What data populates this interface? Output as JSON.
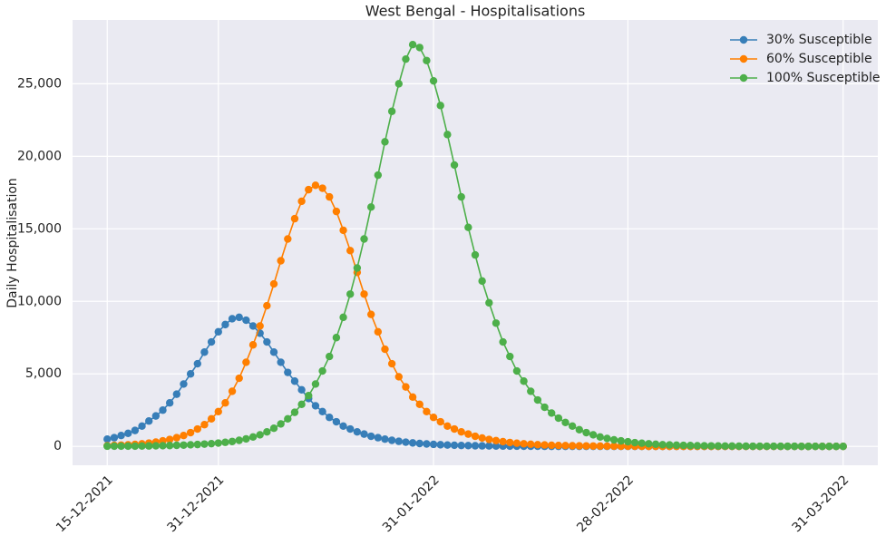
{
  "chart_data": {
    "type": "line",
    "title": "West Bengal - Hospitalisations",
    "y_label": "Daily Hospitalisation",
    "x": [
      "15-12-2021",
      "16-12-2021",
      "17-12-2021",
      "18-12-2021",
      "19-12-2021",
      "20-12-2021",
      "21-12-2021",
      "22-12-2021",
      "23-12-2021",
      "24-12-2021",
      "25-12-2021",
      "26-12-2021",
      "27-12-2021",
      "28-12-2021",
      "29-12-2021",
      "30-12-2021",
      "31-12-2021",
      "01-01-2022",
      "02-01-2022",
      "03-01-2022",
      "04-01-2022",
      "05-01-2022",
      "06-01-2022",
      "07-01-2022",
      "08-01-2022",
      "09-01-2022",
      "10-01-2022",
      "11-01-2022",
      "12-01-2022",
      "13-01-2022",
      "14-01-2022",
      "15-01-2022",
      "16-01-2022",
      "17-01-2022",
      "18-01-2022",
      "19-01-2022",
      "20-01-2022",
      "21-01-2022",
      "22-01-2022",
      "23-01-2022",
      "24-01-2022",
      "25-01-2022",
      "26-01-2022",
      "27-01-2022",
      "28-01-2022",
      "29-01-2022",
      "30-01-2022",
      "31-01-2022",
      "01-02-2022",
      "02-02-2022",
      "03-02-2022",
      "04-02-2022",
      "05-02-2022",
      "06-02-2022",
      "07-02-2022",
      "08-02-2022",
      "09-02-2022",
      "10-02-2022",
      "11-02-2022",
      "12-02-2022",
      "13-02-2022",
      "14-02-2022",
      "15-02-2022",
      "16-02-2022",
      "17-02-2022",
      "18-02-2022",
      "19-02-2022",
      "20-02-2022",
      "21-02-2022",
      "22-02-2022",
      "23-02-2022",
      "24-02-2022",
      "25-02-2022",
      "26-02-2022",
      "27-02-2022",
      "28-02-2022",
      "01-03-2022",
      "02-03-2022",
      "03-03-2022",
      "04-03-2022",
      "05-03-2022",
      "06-03-2022",
      "07-03-2022",
      "08-03-2022",
      "09-03-2022",
      "10-03-2022",
      "11-03-2022",
      "12-03-2022",
      "13-03-2022",
      "14-03-2022",
      "15-03-2022",
      "16-03-2022",
      "17-03-2022",
      "18-03-2022",
      "19-03-2022",
      "20-03-2022",
      "21-03-2022",
      "22-03-2022",
      "23-03-2022",
      "24-03-2022",
      "25-03-2022",
      "26-03-2022",
      "27-03-2022",
      "28-03-2022",
      "29-03-2022",
      "30-03-2022",
      "31-03-2022"
    ],
    "series": [
      {
        "name": "30% Susceptible",
        "color": "#377eb8",
        "values": [
          500,
          600,
          750,
          900,
          1100,
          1400,
          1750,
          2100,
          2500,
          3000,
          3600,
          4300,
          5000,
          5700,
          6500,
          7200,
          7900,
          8400,
          8800,
          8900,
          8700,
          8300,
          7800,
          7200,
          6500,
          5800,
          5100,
          4500,
          3900,
          3300,
          2800,
          2400,
          2000,
          1700,
          1400,
          1200,
          1000,
          850,
          700,
          600,
          500,
          420,
          350,
          290,
          240,
          200,
          170,
          140,
          115,
          95,
          80,
          65,
          55,
          45,
          38,
          32,
          26,
          22,
          18,
          15,
          12,
          10,
          8,
          7,
          6,
          5,
          4,
          3,
          3,
          2,
          2,
          2,
          1,
          1,
          1,
          1,
          1,
          1,
          1,
          1,
          1,
          1,
          1,
          1,
          1,
          1,
          1,
          1,
          1,
          1,
          1,
          1,
          1,
          1,
          1,
          1,
          1,
          1,
          1,
          1,
          1,
          1,
          1,
          1,
          1,
          1,
          1
        ]
      },
      {
        "name": "60% Susceptible",
        "color": "#ff7f00",
        "values": [
          50,
          70,
          90,
          110,
          140,
          180,
          230,
          300,
          380,
          480,
          600,
          750,
          950,
          1200,
          1500,
          1900,
          2400,
          3000,
          3800,
          4700,
          5800,
          7000,
          8300,
          9700,
          11200,
          12800,
          14300,
          15700,
          16900,
          17700,
          18000,
          17800,
          17200,
          16200,
          14900,
          13500,
          12000,
          10500,
          9100,
          7900,
          6700,
          5700,
          4800,
          4100,
          3400,
          2900,
          2400,
          2000,
          1700,
          1400,
          1200,
          1000,
          850,
          700,
          580,
          480,
          400,
          330,
          270,
          220,
          180,
          150,
          120,
          100,
          80,
          65,
          55,
          45,
          38,
          32,
          27,
          22,
          18,
          15,
          12,
          10,
          8,
          7,
          6,
          5,
          4,
          4,
          3,
          3,
          2,
          2,
          2,
          1,
          1,
          1,
          1,
          1,
          1,
          1,
          1,
          1,
          1,
          1,
          1,
          1,
          1,
          1,
          1,
          1,
          1,
          1,
          1
        ]
      },
      {
        "name": "100% Susceptible",
        "color": "#4daf4a",
        "values": [
          15,
          17,
          18,
          20,
          20,
          25,
          30,
          40,
          50,
          60,
          75,
          90,
          110,
          130,
          160,
          190,
          230,
          280,
          340,
          420,
          520,
          650,
          800,
          1000,
          1250,
          1550,
          1900,
          2350,
          2900,
          3500,
          4300,
          5200,
          6200,
          7500,
          8900,
          10500,
          12300,
          14300,
          16500,
          18700,
          21000,
          23100,
          25000,
          26700,
          27700,
          27500,
          26600,
          25200,
          23500,
          21500,
          19400,
          17200,
          15100,
          13200,
          11400,
          9900,
          8500,
          7200,
          6200,
          5200,
          4500,
          3800,
          3200,
          2700,
          2300,
          1950,
          1650,
          1400,
          1150,
          950,
          800,
          650,
          550,
          450,
          380,
          320,
          260,
          220,
          180,
          150,
          120,
          100,
          85,
          70,
          60,
          50,
          42,
          35,
          30,
          25,
          21,
          18,
          15,
          12,
          10,
          9,
          8,
          7,
          6,
          5,
          4,
          4,
          3,
          3,
          2,
          2,
          2
        ]
      }
    ],
    "xlim": [
      "10-12-2021",
      "05-04-2022"
    ],
    "xticks": [
      "15-12-2021",
      "31-12-2021",
      "31-01-2022",
      "28-02-2022",
      "31-03-2022"
    ],
    "ylim": [
      -1300,
      29400
    ],
    "yticks": [
      0,
      {
        "value": 5000,
        "label": "5,000"
      },
      {
        "value": 10000,
        "label": "10,000"
      },
      {
        "value": 15000,
        "label": "15,000"
      },
      {
        "value": 20000,
        "label": "20,000"
      },
      {
        "value": 25000,
        "label": "25,000"
      }
    ],
    "grid": true,
    "legend": "upper right"
  }
}
